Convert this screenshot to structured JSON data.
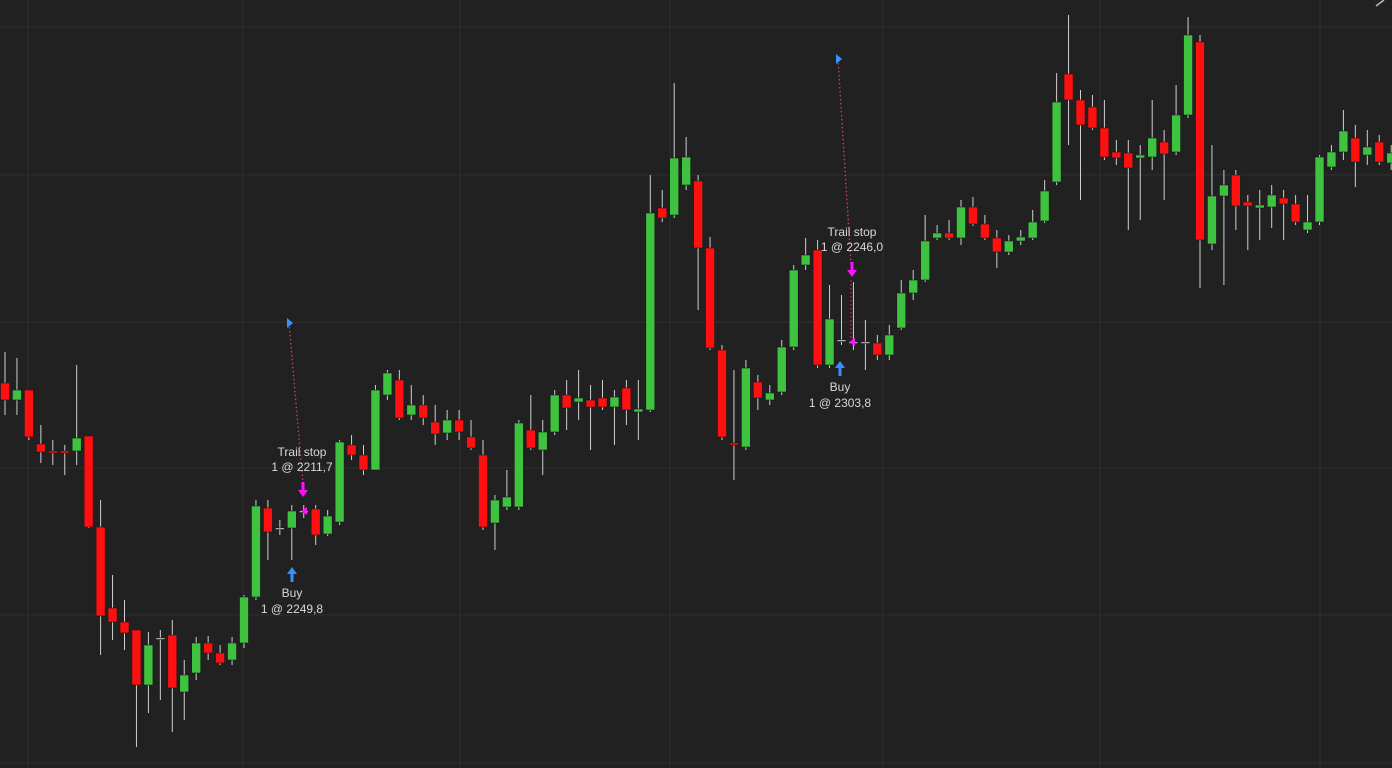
{
  "chart_data": {
    "type": "candlestick",
    "ylim": [
      2179.6,
      2410
    ],
    "up_color": "#3fc23f",
    "down_color": "#ff1010",
    "flat_color": "#e6e6e6",
    "wick_color": "#cfcfcf",
    "candles": [
      [
        2295.1,
        2304.4,
        2285.5,
        2290.0
      ],
      [
        2290.0,
        2302.6,
        2285.5,
        2293.0
      ],
      [
        2293.0,
        2293.0,
        2278.0,
        2278.9
      ],
      [
        2276.8,
        2282.5,
        2271.1,
        2274.4
      ],
      [
        2274.7,
        2278.0,
        2270.5,
        2274.1
      ],
      [
        2274.7,
        2276.5,
        2267.5,
        2274.1
      ],
      [
        2274.7,
        2300.5,
        2270.5,
        2278.6
      ],
      [
        2279.2,
        2279.2,
        2251.6,
        2251.9
      ],
      [
        2251.9,
        2260.0,
        2213.5,
        2225.2
      ],
      [
        2227.6,
        2237.5,
        2218.0,
        2223.4
      ],
      [
        2223.4,
        2230.0,
        2215.0,
        2220.1
      ],
      [
        2221.0,
        2221.0,
        2185.9,
        2204.5
      ],
      [
        2204.5,
        2220.4,
        2196.1,
        2216.5
      ],
      [
        2218.6,
        2221.0,
        2200.0,
        2218.6
      ],
      [
        2219.5,
        2224.0,
        2190.4,
        2203.6
      ],
      [
        2202.4,
        2212.0,
        2194.0,
        2207.5
      ],
      [
        2208.1,
        2218.9,
        2206.0,
        2217.1
      ],
      [
        2217.1,
        2219.2,
        2212.0,
        2214.1
      ],
      [
        2214.1,
        2216.5,
        2210.5,
        2211.1
      ],
      [
        2212.0,
        2218.9,
        2210.5,
        2217.1
      ],
      [
        2217.1,
        2231.5,
        2215.6,
        2230.9
      ],
      [
        2230.9,
        2260.0,
        2230.0,
        2258.2
      ],
      [
        2257.6,
        2260.0,
        2242.0,
        2250.4
      ],
      [
        2251.6,
        2254.0,
        2249.5,
        2251.6
      ],
      [
        2251.6,
        2258.5,
        2242.0,
        2256.7
      ],
      [
        2256.7,
        2258.5,
        2254.6,
        2256.7
      ],
      [
        2257.3,
        2258.5,
        2246.5,
        2249.5
      ],
      [
        2249.8,
        2257.0,
        2249.2,
        2255.2
      ],
      [
        2253.4,
        2278.0,
        2252.5,
        2277.4
      ],
      [
        2276.5,
        2279.5,
        2272.0,
        2273.5
      ],
      [
        2273.5,
        2276.5,
        2267.5,
        2269.0
      ],
      [
        2269.0,
        2294.5,
        2269.0,
        2293.0
      ],
      [
        2291.5,
        2299.0,
        2290.0,
        2298.1
      ],
      [
        2296.0,
        2299.0,
        2284.0,
        2284.6
      ],
      [
        2285.5,
        2294.5,
        2284.0,
        2288.5
      ],
      [
        2288.5,
        2291.5,
        2282.5,
        2284.6
      ],
      [
        2283.4,
        2288.5,
        2276.5,
        2279.8
      ],
      [
        2280.1,
        2287.0,
        2278.0,
        2284.0
      ],
      [
        2284.0,
        2287.0,
        2278.0,
        2280.4
      ],
      [
        2278.9,
        2284.0,
        2275.0,
        2275.6
      ],
      [
        2273.5,
        2278.0,
        2251.0,
        2251.9
      ],
      [
        2253.1,
        2261.5,
        2245.0,
        2260.0
      ],
      [
        2257.9,
        2269.0,
        2257.0,
        2260.9
      ],
      [
        2257.9,
        2284.0,
        2257.0,
        2283.1
      ],
      [
        2281.0,
        2291.5,
        2275.0,
        2275.6
      ],
      [
        2275.0,
        2284.0,
        2267.5,
        2280.4
      ],
      [
        2280.4,
        2293.0,
        2279.5,
        2291.5
      ],
      [
        2291.5,
        2296.0,
        2281.0,
        2287.6
      ],
      [
        2289.4,
        2299.0,
        2284.0,
        2290.6
      ],
      [
        2290.0,
        2294.5,
        2275.0,
        2287.9
      ],
      [
        2290.6,
        2296.0,
        2287.0,
        2287.9
      ],
      [
        2287.9,
        2293.0,
        2276.5,
        2290.9
      ],
      [
        2293.6,
        2296.0,
        2282.5,
        2287.0
      ],
      [
        2286.4,
        2296.0,
        2278.0,
        2287.3
      ],
      [
        2287.0,
        2357.5,
        2286.4,
        2346.1
      ],
      [
        2347.6,
        2353.0,
        2343.4,
        2344.6
      ],
      [
        2345.5,
        2385.1,
        2344.6,
        2362.6
      ],
      [
        2354.5,
        2368.9,
        2353.0,
        2362.9
      ],
      [
        2355.7,
        2357.5,
        2317.0,
        2335.6
      ],
      [
        2335.6,
        2338.9,
        2305.0,
        2305.6
      ],
      [
        2305.0,
        2306.5,
        2278.0,
        2278.9
      ],
      [
        2277.1,
        2299.0,
        2266.0,
        2276.5
      ],
      [
        2275.9,
        2302.0,
        2275.0,
        2299.6
      ],
      [
        2295.4,
        2297.5,
        2287.0,
        2290.6
      ],
      [
        2290.0,
        2294.5,
        2288.5,
        2292.1
      ],
      [
        2292.4,
        2308.0,
        2291.5,
        2305.9
      ],
      [
        2305.9,
        2330.5,
        2305.0,
        2329.0
      ],
      [
        2330.5,
        2338.6,
        2329.0,
        2333.5
      ],
      [
        2335.0,
        2338.0,
        2299.6,
        2300.5
      ],
      [
        2300.5,
        2324.5,
        2299.6,
        2314.3
      ],
      [
        2308.0,
        2321.5,
        2306.5,
        2308.0
      ],
      [
        2307.4,
        2325.4,
        2305.0,
        2307.4
      ],
      [
        2307.4,
        2314.0,
        2299.0,
        2307.4
      ],
      [
        2307.1,
        2309.5,
        2302.0,
        2303.5
      ],
      [
        2303.5,
        2312.5,
        2302.0,
        2309.5
      ],
      [
        2311.6,
        2326.0,
        2311.0,
        2322.1
      ],
      [
        2322.1,
        2329.0,
        2320.0,
        2326.0
      ],
      [
        2326.0,
        2345.5,
        2325.4,
        2337.7
      ],
      [
        2338.6,
        2342.5,
        2338.0,
        2340.1
      ],
      [
        2340.1,
        2344.0,
        2338.0,
        2338.6
      ],
      [
        2338.6,
        2350.0,
        2336.5,
        2347.9
      ],
      [
        2347.9,
        2350.9,
        2342.2,
        2342.8
      ],
      [
        2342.8,
        2345.5,
        2338.0,
        2338.6
      ],
      [
        2338.6,
        2341.0,
        2329.6,
        2334.4
      ],
      [
        2334.4,
        2339.5,
        2333.5,
        2337.7
      ],
      [
        2337.7,
        2341.0,
        2336.5,
        2338.9
      ],
      [
        2338.6,
        2347.0,
        2338.0,
        2343.4
      ],
      [
        2343.7,
        2356.0,
        2343.1,
        2352.7
      ],
      [
        2355.4,
        2388.1,
        2354.5,
        2379.4
      ],
      [
        2387.8,
        2405.5,
        2366.5,
        2380.0
      ],
      [
        2380.0,
        2383.0,
        2350.0,
        2372.5
      ],
      [
        2377.9,
        2381.5,
        2371.0,
        2371.6
      ],
      [
        2371.6,
        2380.0,
        2362.0,
        2362.9
      ],
      [
        2364.4,
        2368.0,
        2360.5,
        2362.6
      ],
      [
        2364.1,
        2368.0,
        2341.0,
        2359.6
      ],
      [
        2362.6,
        2366.5,
        2344.0,
        2363.5
      ],
      [
        2362.9,
        2380.0,
        2359.0,
        2368.6
      ],
      [
        2367.4,
        2371.0,
        2350.0,
        2363.8
      ],
      [
        2364.4,
        2384.5,
        2363.5,
        2375.5
      ],
      [
        2375.5,
        2404.9,
        2374.6,
        2399.5
      ],
      [
        2397.4,
        2399.5,
        2323.6,
        2338.0
      ],
      [
        2336.8,
        2366.5,
        2335.0,
        2351.2
      ],
      [
        2351.2,
        2359.0,
        2324.5,
        2354.5
      ],
      [
        2357.5,
        2359.0,
        2341.0,
        2348.2
      ],
      [
        2349.4,
        2351.5,
        2335.0,
        2348.2
      ],
      [
        2347.6,
        2353.0,
        2338.0,
        2348.5
      ],
      [
        2347.9,
        2354.5,
        2341.6,
        2351.5
      ],
      [
        2350.6,
        2353.0,
        2338.0,
        2348.8
      ],
      [
        2348.8,
        2351.5,
        2342.5,
        2343.4
      ],
      [
        2341.0,
        2351.5,
        2340.1,
        2343.4
      ],
      [
        2343.4,
        2363.5,
        2342.5,
        2362.9
      ],
      [
        2359.9,
        2366.5,
        2359.0,
        2364.4
      ],
      [
        2364.4,
        2377.0,
        2362.0,
        2370.7
      ],
      [
        2368.6,
        2372.5,
        2353.9,
        2361.4
      ],
      [
        2363.5,
        2371.0,
        2360.5,
        2365.9
      ],
      [
        2367.4,
        2369.5,
        2360.5,
        2361.4
      ],
      [
        2361.1,
        2366.5,
        2359.0,
        2364.1
      ]
    ],
    "trades": [
      {
        "label": "Buy",
        "order": "1 @ 2249,8"
      },
      {
        "label": "Trail stop",
        "order": "1 @ 2211,7"
      },
      {
        "label": "Buy",
        "order": "1 @ 2303,8"
      },
      {
        "label": "Trail stop",
        "order": "1 @ 2246,0"
      }
    ]
  }
}
